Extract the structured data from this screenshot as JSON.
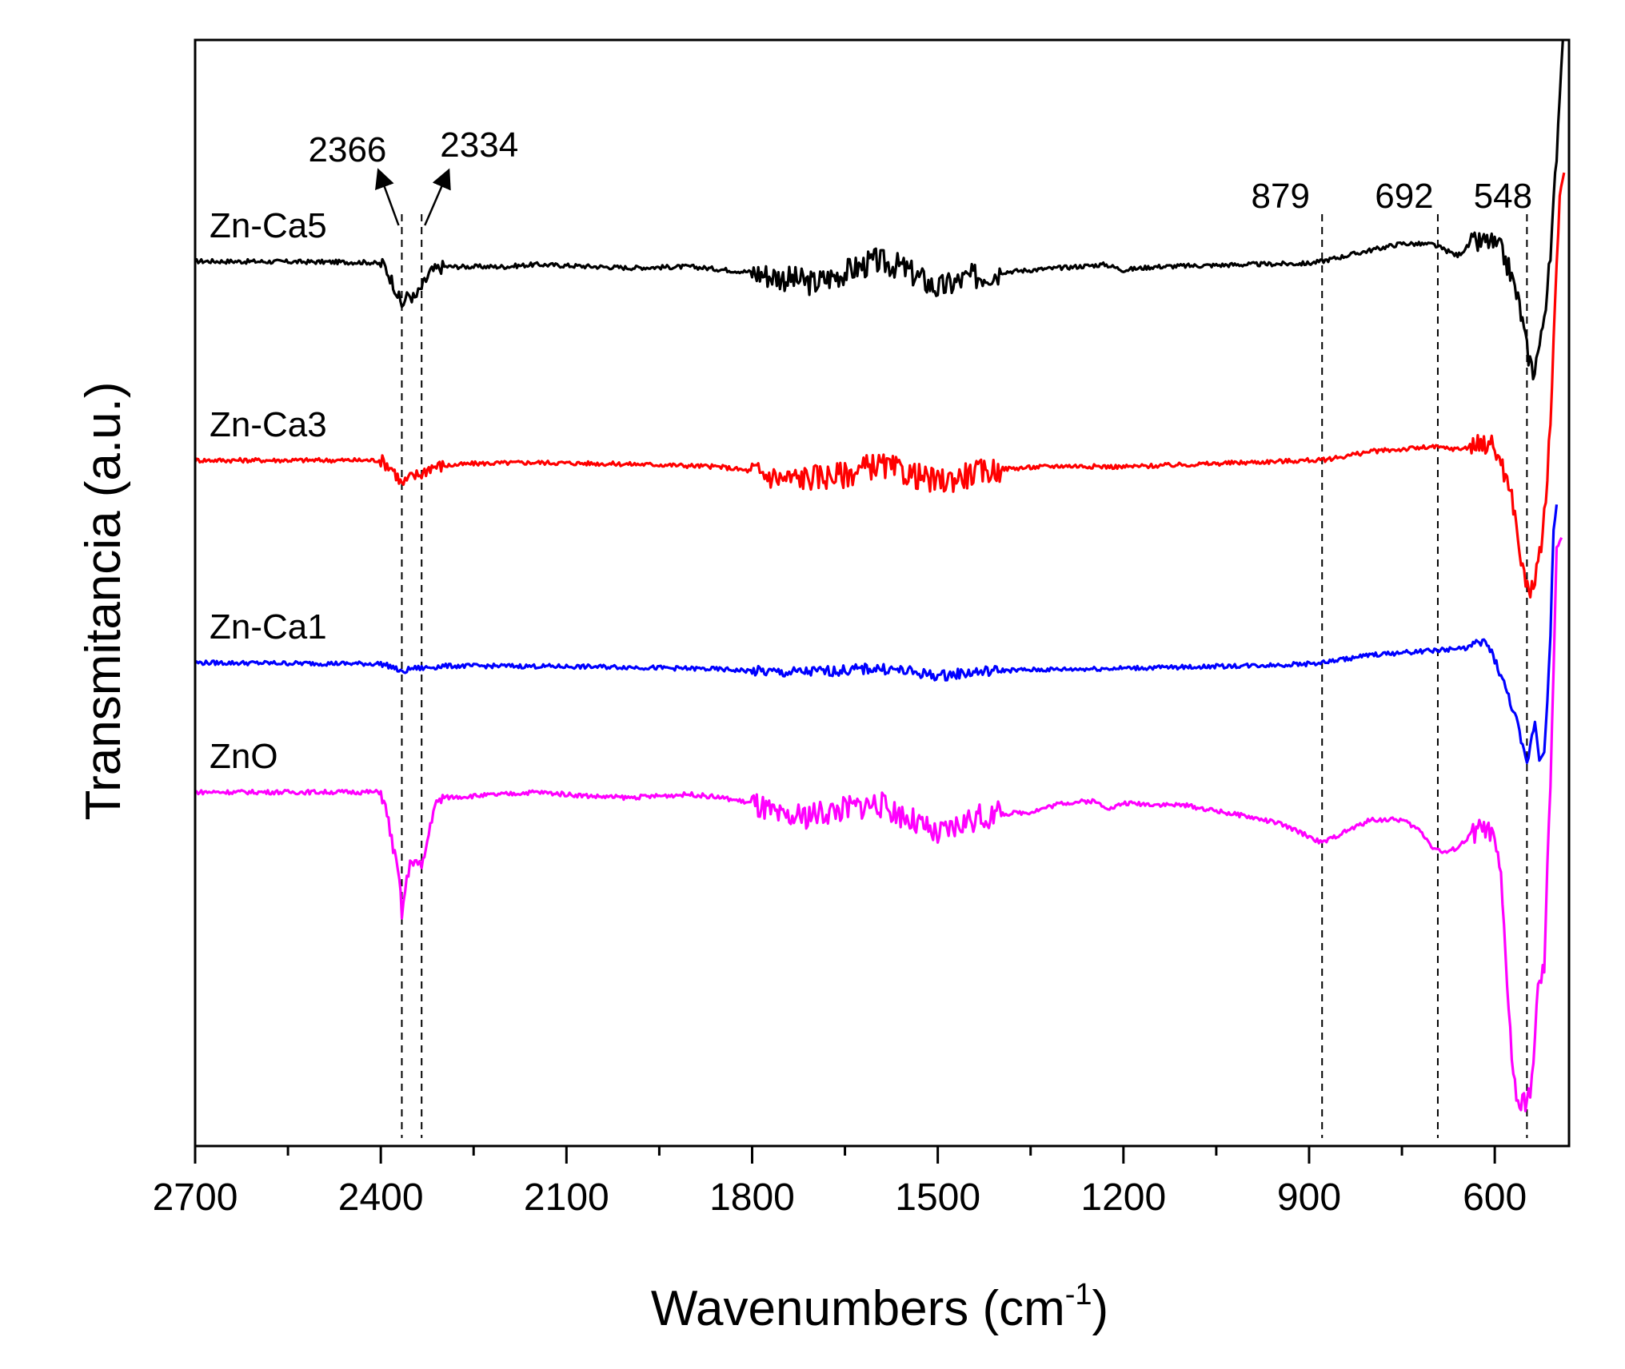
{
  "chart_data": {
    "type": "line",
    "title": "",
    "xlabel": "Wavenumbers (cm",
    "xlabel_sup": "-1",
    "xlabel_close": ")",
    "ylabel": "Transmitancia (a.u.)",
    "xlim": [
      2700,
      480
    ],
    "ylim": [
      0,
      1
    ],
    "x_ticks": [
      2700,
      2400,
      2100,
      1800,
      1500,
      1200,
      900,
      600
    ],
    "x_tick_labels": [
      "2700",
      "2400",
      "2100",
      "1800",
      "1500",
      "1200",
      "900",
      "600"
    ],
    "x_minor_ticks": [
      2550,
      2250,
      1950,
      1650,
      1350,
      1050,
      750
    ],
    "y_ticks": [],
    "grid": false,
    "reference_lines": [
      {
        "x": 2366,
        "label": "2366"
      },
      {
        "x": 2334,
        "label": "2334"
      },
      {
        "x": 879,
        "label": "879"
      },
      {
        "x": 692,
        "label": "692"
      },
      {
        "x": 548,
        "label": "548"
      }
    ],
    "series": [
      {
        "name": "Zn-Ca5",
        "color": "#000000",
        "baseline": 0.8,
        "points": [
          [
            2700,
            0.8
          ],
          [
            2420,
            0.799
          ],
          [
            2395,
            0.797
          ],
          [
            2380,
            0.78
          ],
          [
            2366,
            0.76
          ],
          [
            2355,
            0.77
          ],
          [
            2345,
            0.766
          ],
          [
            2334,
            0.776
          ],
          [
            2320,
            0.79
          ],
          [
            2300,
            0.795
          ],
          [
            2200,
            0.795
          ],
          [
            2150,
            0.797
          ],
          [
            2000,
            0.794
          ],
          [
            1900,
            0.795
          ],
          [
            1800,
            0.79
          ],
          [
            1700,
            0.78
          ],
          [
            1650,
            0.79
          ],
          [
            1600,
            0.8
          ],
          [
            1560,
            0.795
          ],
          [
            1500,
            0.775
          ],
          [
            1450,
            0.785
          ],
          [
            1400,
            0.79
          ],
          [
            1300,
            0.794
          ],
          [
            1230,
            0.797
          ],
          [
            1200,
            0.792
          ],
          [
            1150,
            0.795
          ],
          [
            1000,
            0.797
          ],
          [
            900,
            0.798
          ],
          [
            879,
            0.8
          ],
          [
            800,
            0.81
          ],
          [
            750,
            0.816
          ],
          [
            700,
            0.815
          ],
          [
            660,
            0.805
          ],
          [
            640,
            0.815
          ],
          [
            610,
            0.818
          ],
          [
            590,
            0.81
          ],
          [
            575,
            0.79
          ],
          [
            560,
            0.76
          ],
          [
            548,
            0.72
          ],
          [
            538,
            0.7
          ],
          [
            525,
            0.73
          ],
          [
            510,
            0.8
          ],
          [
            500,
            0.9
          ],
          [
            490,
            1.0
          ]
        ]
      },
      {
        "name": "Zn-Ca3",
        "color": "#ff0000",
        "baseline": 0.62,
        "points": [
          [
            2700,
            0.62
          ],
          [
            2400,
            0.62
          ],
          [
            2380,
            0.612
          ],
          [
            2366,
            0.598
          ],
          [
            2350,
            0.605
          ],
          [
            2334,
            0.608
          ],
          [
            2320,
            0.614
          ],
          [
            2250,
            0.617
          ],
          [
            2150,
            0.618
          ],
          [
            1950,
            0.616
          ],
          [
            1850,
            0.614
          ],
          [
            1800,
            0.61
          ],
          [
            1750,
            0.603
          ],
          [
            1650,
            0.607
          ],
          [
            1600,
            0.616
          ],
          [
            1560,
            0.61
          ],
          [
            1500,
            0.6
          ],
          [
            1450,
            0.607
          ],
          [
            1400,
            0.612
          ],
          [
            1300,
            0.615
          ],
          [
            1200,
            0.614
          ],
          [
            1000,
            0.618
          ],
          [
            900,
            0.62
          ],
          [
            879,
            0.62
          ],
          [
            800,
            0.628
          ],
          [
            700,
            0.632
          ],
          [
            660,
            0.63
          ],
          [
            620,
            0.634
          ],
          [
            610,
            0.638
          ],
          [
            590,
            0.62
          ],
          [
            570,
            0.58
          ],
          [
            555,
            0.52
          ],
          [
            545,
            0.5
          ],
          [
            530,
            0.52
          ],
          [
            515,
            0.6
          ],
          [
            505,
            0.72
          ],
          [
            495,
            0.86
          ],
          [
            488,
            0.88
          ]
        ]
      },
      {
        "name": "Zn-Ca1",
        "color": "#0000ff",
        "baseline": 0.437,
        "points": [
          [
            2700,
            0.437
          ],
          [
            2400,
            0.436
          ],
          [
            2380,
            0.433
          ],
          [
            2366,
            0.428
          ],
          [
            2350,
            0.432
          ],
          [
            2334,
            0.432
          ],
          [
            2300,
            0.434
          ],
          [
            2200,
            0.434
          ],
          [
            2000,
            0.433
          ],
          [
            1850,
            0.431
          ],
          [
            1750,
            0.428
          ],
          [
            1650,
            0.43
          ],
          [
            1600,
            0.432
          ],
          [
            1560,
            0.43
          ],
          [
            1500,
            0.425
          ],
          [
            1450,
            0.428
          ],
          [
            1400,
            0.43
          ],
          [
            1300,
            0.431
          ],
          [
            1100,
            0.433
          ],
          [
            950,
            0.435
          ],
          [
            900,
            0.436
          ],
          [
            879,
            0.437
          ],
          [
            800,
            0.444
          ],
          [
            700,
            0.448
          ],
          [
            650,
            0.45
          ],
          [
            615,
            0.456
          ],
          [
            600,
            0.44
          ],
          [
            580,
            0.41
          ],
          [
            565,
            0.385
          ],
          [
            555,
            0.36
          ],
          [
            548,
            0.345
          ],
          [
            540,
            0.37
          ],
          [
            535,
            0.385
          ],
          [
            528,
            0.35
          ],
          [
            520,
            0.36
          ],
          [
            515,
            0.4
          ],
          [
            510,
            0.46
          ],
          [
            505,
            0.56
          ],
          [
            500,
            0.58
          ]
        ]
      },
      {
        "name": "ZnO",
        "color": "#ff00ff",
        "baseline": 0.32,
        "points": [
          [
            2700,
            0.32
          ],
          [
            2400,
            0.32
          ],
          [
            2390,
            0.3
          ],
          [
            2380,
            0.27
          ],
          [
            2370,
            0.24
          ],
          [
            2366,
            0.21
          ],
          [
            2358,
            0.24
          ],
          [
            2350,
            0.26
          ],
          [
            2340,
            0.255
          ],
          [
            2334,
            0.25
          ],
          [
            2325,
            0.275
          ],
          [
            2315,
            0.305
          ],
          [
            2300,
            0.315
          ],
          [
            2200,
            0.318
          ],
          [
            2150,
            0.32
          ],
          [
            2050,
            0.316
          ],
          [
            2000,
            0.315
          ],
          [
            1900,
            0.318
          ],
          [
            1850,
            0.315
          ],
          [
            1800,
            0.31
          ],
          [
            1750,
            0.295
          ],
          [
            1700,
            0.3
          ],
          [
            1650,
            0.305
          ],
          [
            1600,
            0.31
          ],
          [
            1560,
            0.3
          ],
          [
            1500,
            0.28
          ],
          [
            1450,
            0.295
          ],
          [
            1400,
            0.3
          ],
          [
            1350,
            0.302
          ],
          [
            1300,
            0.31
          ],
          [
            1250,
            0.312
          ],
          [
            1220,
            0.305
          ],
          [
            1200,
            0.31
          ],
          [
            1100,
            0.308
          ],
          [
            1000,
            0.298
          ],
          [
            950,
            0.292
          ],
          [
            900,
            0.28
          ],
          [
            879,
            0.274
          ],
          [
            850,
            0.282
          ],
          [
            800,
            0.295
          ],
          [
            750,
            0.295
          ],
          [
            720,
            0.285
          ],
          [
            700,
            0.27
          ],
          [
            680,
            0.265
          ],
          [
            660,
            0.27
          ],
          [
            630,
            0.285
          ],
          [
            615,
            0.288
          ],
          [
            600,
            0.275
          ],
          [
            590,
            0.24
          ],
          [
            580,
            0.15
          ],
          [
            570,
            0.06
          ],
          [
            560,
            0.035
          ],
          [
            548,
            0.04
          ],
          [
            540,
            0.06
          ],
          [
            530,
            0.14
          ],
          [
            520,
            0.16
          ],
          [
            510,
            0.33
          ],
          [
            500,
            0.54
          ],
          [
            492,
            0.55
          ]
        ]
      }
    ]
  }
}
